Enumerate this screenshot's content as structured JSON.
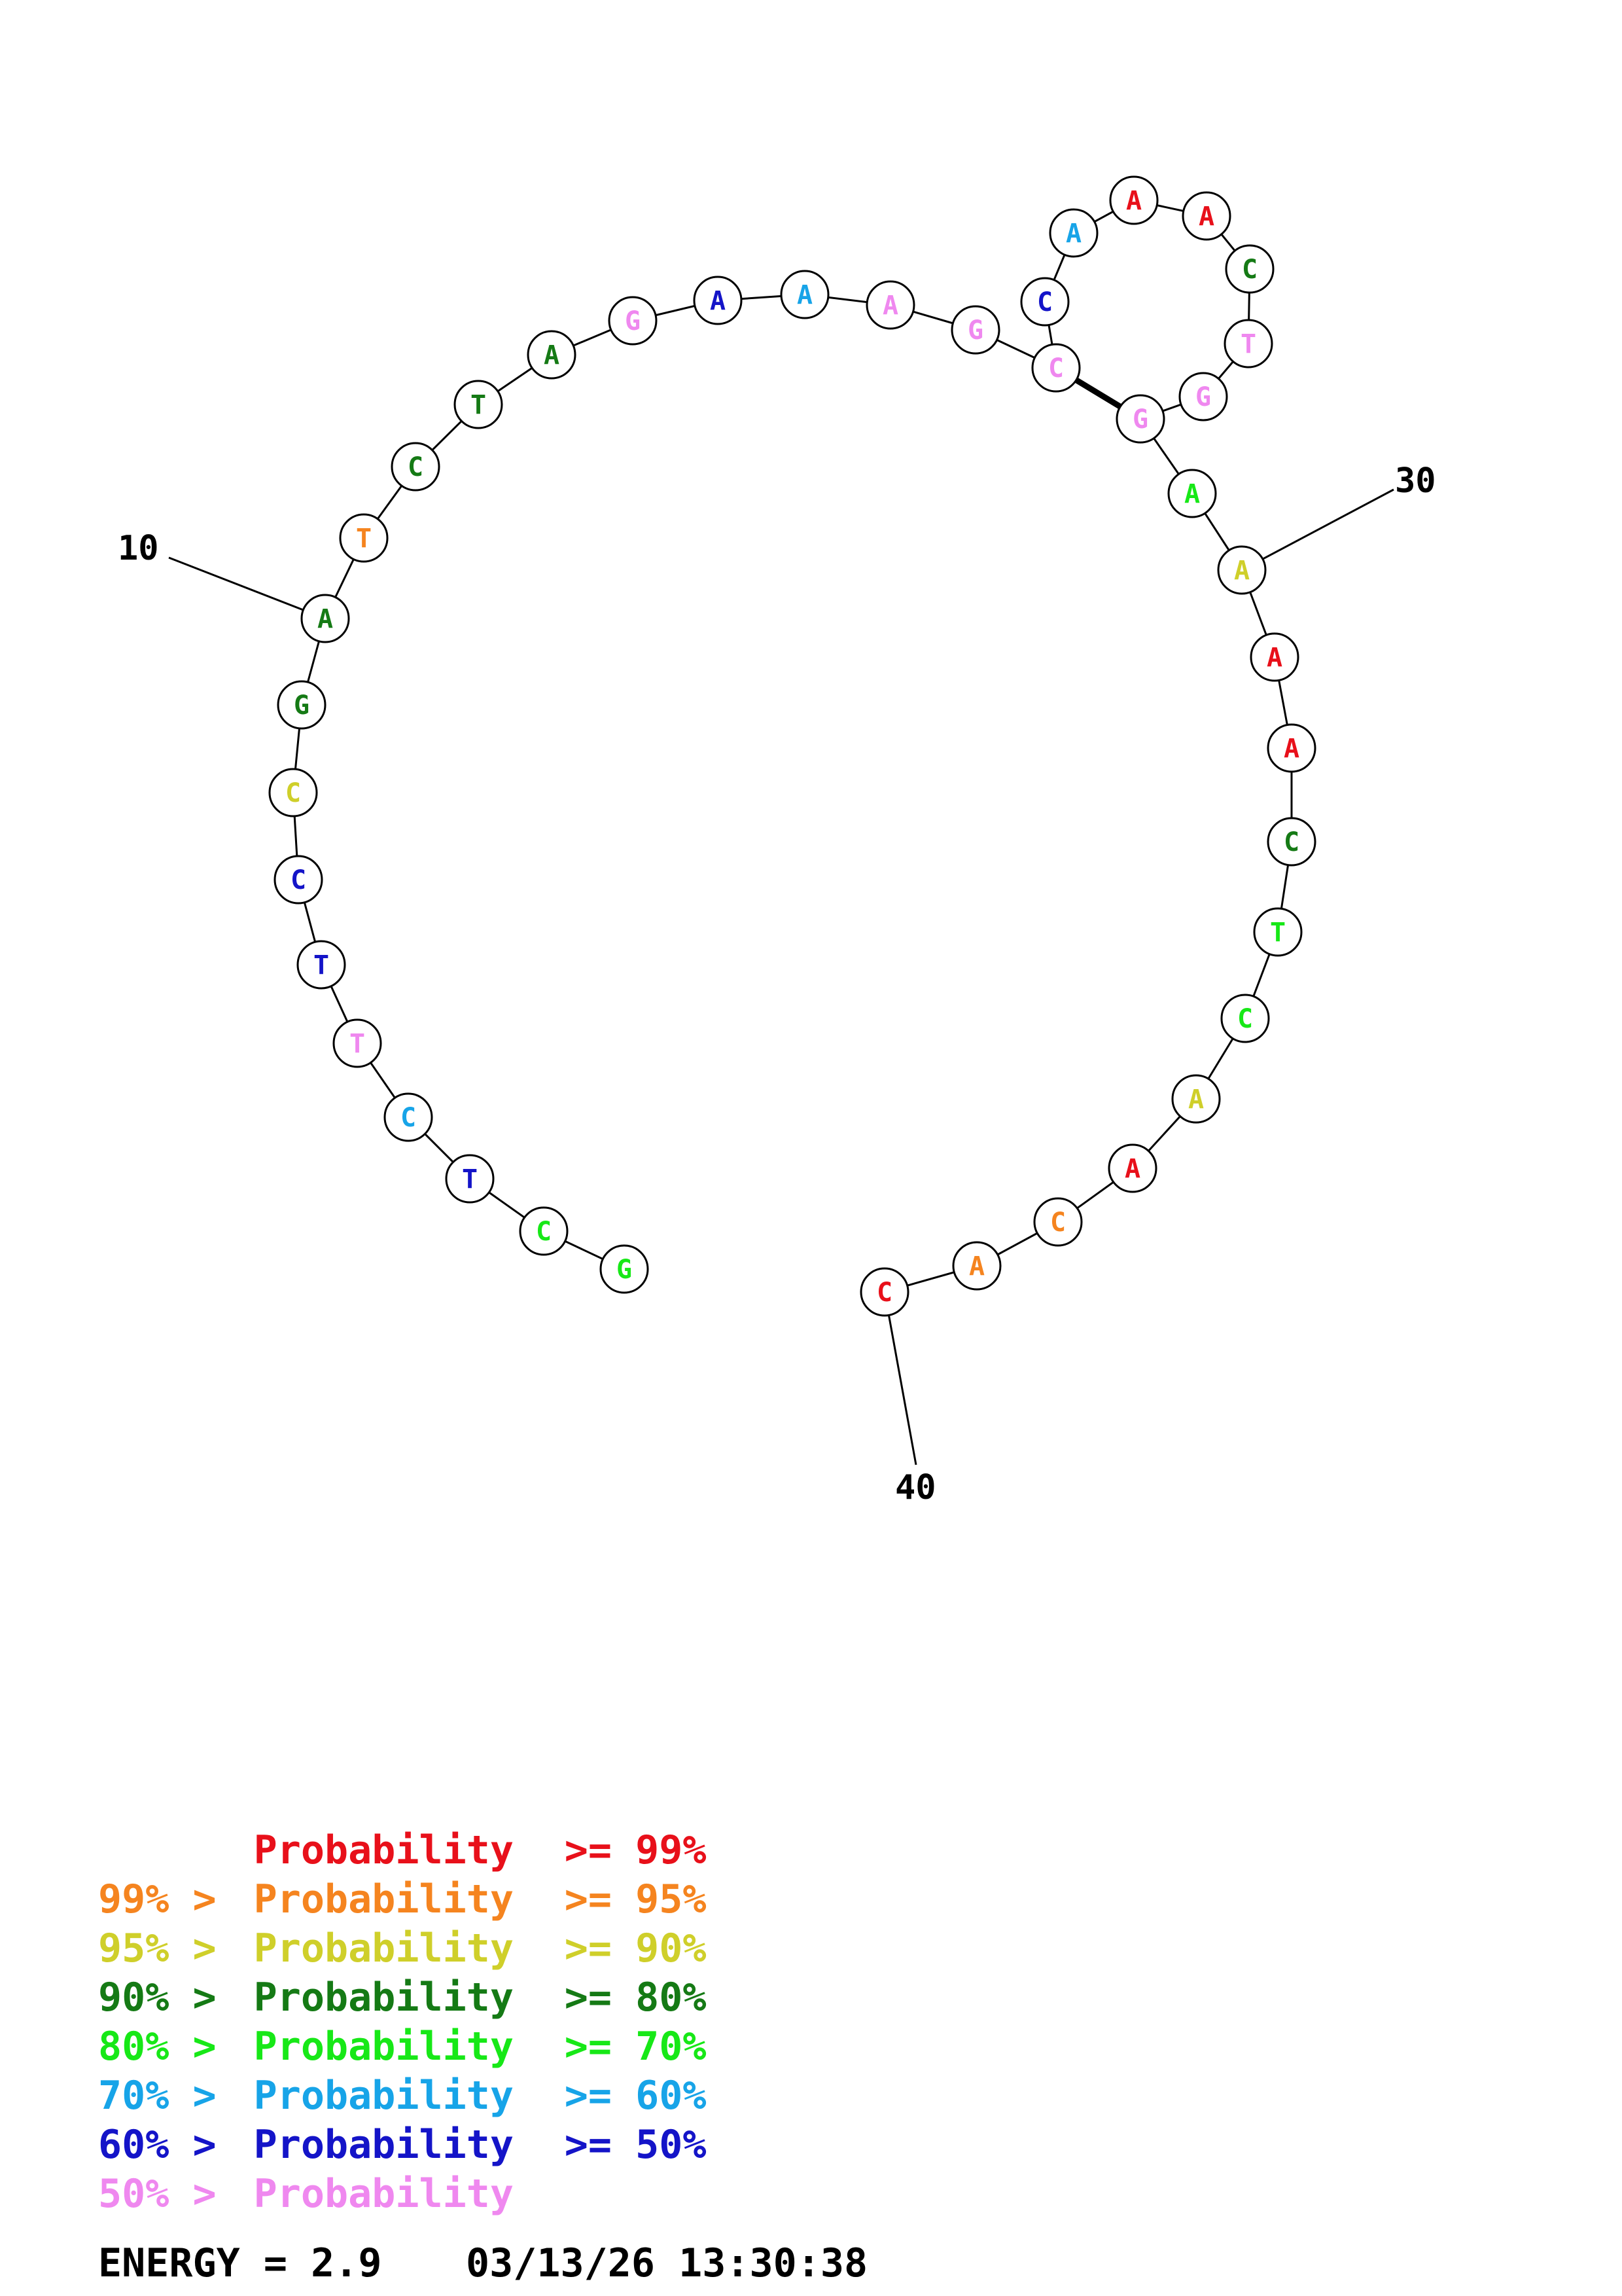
{
  "colors": {
    "p99": "#e8101a",
    "p95": "#f5841f",
    "p90": "#cfcf2a",
    "p80": "#157a15",
    "p70": "#17e817",
    "p60": "#17a4e8",
    "p50": "#1414c8",
    "plt50": "#ef88ef",
    "outline": "#000000"
  },
  "sequence": [
    {
      "base": "G",
      "prob": "p70"
    },
    {
      "base": "C",
      "prob": "p70"
    },
    {
      "base": "T",
      "prob": "p50"
    },
    {
      "base": "C",
      "prob": "p60"
    },
    {
      "base": "T",
      "prob": "plt50"
    },
    {
      "base": "T",
      "prob": "p50"
    },
    {
      "base": "C",
      "prob": "p50"
    },
    {
      "base": "C",
      "prob": "p90"
    },
    {
      "base": "G",
      "prob": "p80"
    },
    {
      "base": "A",
      "prob": "p80"
    },
    {
      "base": "T",
      "prob": "p95"
    },
    {
      "base": "C",
      "prob": "p80"
    },
    {
      "base": "T",
      "prob": "p80"
    },
    {
      "base": "A",
      "prob": "p80"
    },
    {
      "base": "G",
      "prob": "plt50"
    },
    {
      "base": "A",
      "prob": "p50"
    },
    {
      "base": "A",
      "prob": "p60"
    },
    {
      "base": "A",
      "prob": "plt50"
    },
    {
      "base": "G",
      "prob": "plt50"
    },
    {
      "base": "C",
      "prob": "plt50"
    },
    {
      "base": "C",
      "prob": "p50"
    },
    {
      "base": "A",
      "prob": "p60"
    },
    {
      "base": "A",
      "prob": "p99"
    },
    {
      "base": "A",
      "prob": "p99"
    },
    {
      "base": "C",
      "prob": "p80"
    },
    {
      "base": "T",
      "prob": "plt50"
    },
    {
      "base": "G",
      "prob": "plt50"
    },
    {
      "base": "G",
      "prob": "plt50"
    },
    {
      "base": "A",
      "prob": "p70"
    },
    {
      "base": "A",
      "prob": "p90"
    },
    {
      "base": "A",
      "prob": "p99"
    },
    {
      "base": "A",
      "prob": "p99"
    },
    {
      "base": "C",
      "prob": "p80"
    },
    {
      "base": "T",
      "prob": "p70"
    },
    {
      "base": "C",
      "prob": "p70"
    },
    {
      "base": "A",
      "prob": "p90"
    },
    {
      "base": "A",
      "prob": "p99"
    },
    {
      "base": "C",
      "prob": "p95"
    },
    {
      "base": "A",
      "prob": "p95"
    },
    {
      "base": "C",
      "prob": "p99"
    }
  ],
  "pairs": [
    [
      20,
      28
    ]
  ],
  "position_labels": [
    {
      "index": 10,
      "text": "10"
    },
    {
      "index": 30,
      "text": "30"
    },
    {
      "index": 40,
      "text": "40"
    }
  ],
  "legend": [
    {
      "prefix": "",
      "label": "Probability",
      "suffix": ">= 99%",
      "color": "p99"
    },
    {
      "prefix": "99% >",
      "label": "Probability",
      "suffix": ">= 95%",
      "color": "p95"
    },
    {
      "prefix": "95% >",
      "label": "Probability",
      "suffix": ">= 90%",
      "color": "p90"
    },
    {
      "prefix": "90% >",
      "label": "Probability",
      "suffix": ">= 80%",
      "color": "p80"
    },
    {
      "prefix": "80% >",
      "label": "Probability",
      "suffix": ">= 70%",
      "color": "p70"
    },
    {
      "prefix": "70% >",
      "label": "Probability",
      "suffix": ">= 60%",
      "color": "p60"
    },
    {
      "prefix": "60% >",
      "label": "Probability",
      "suffix": ">= 50%",
      "color": "p50"
    },
    {
      "prefix": "50% >",
      "label": "Probability",
      "suffix": "",
      "color": "plt50"
    }
  ],
  "footer": {
    "energy": "ENERGY = 2.9",
    "timestamp": "03/13/26 13:30:38"
  }
}
